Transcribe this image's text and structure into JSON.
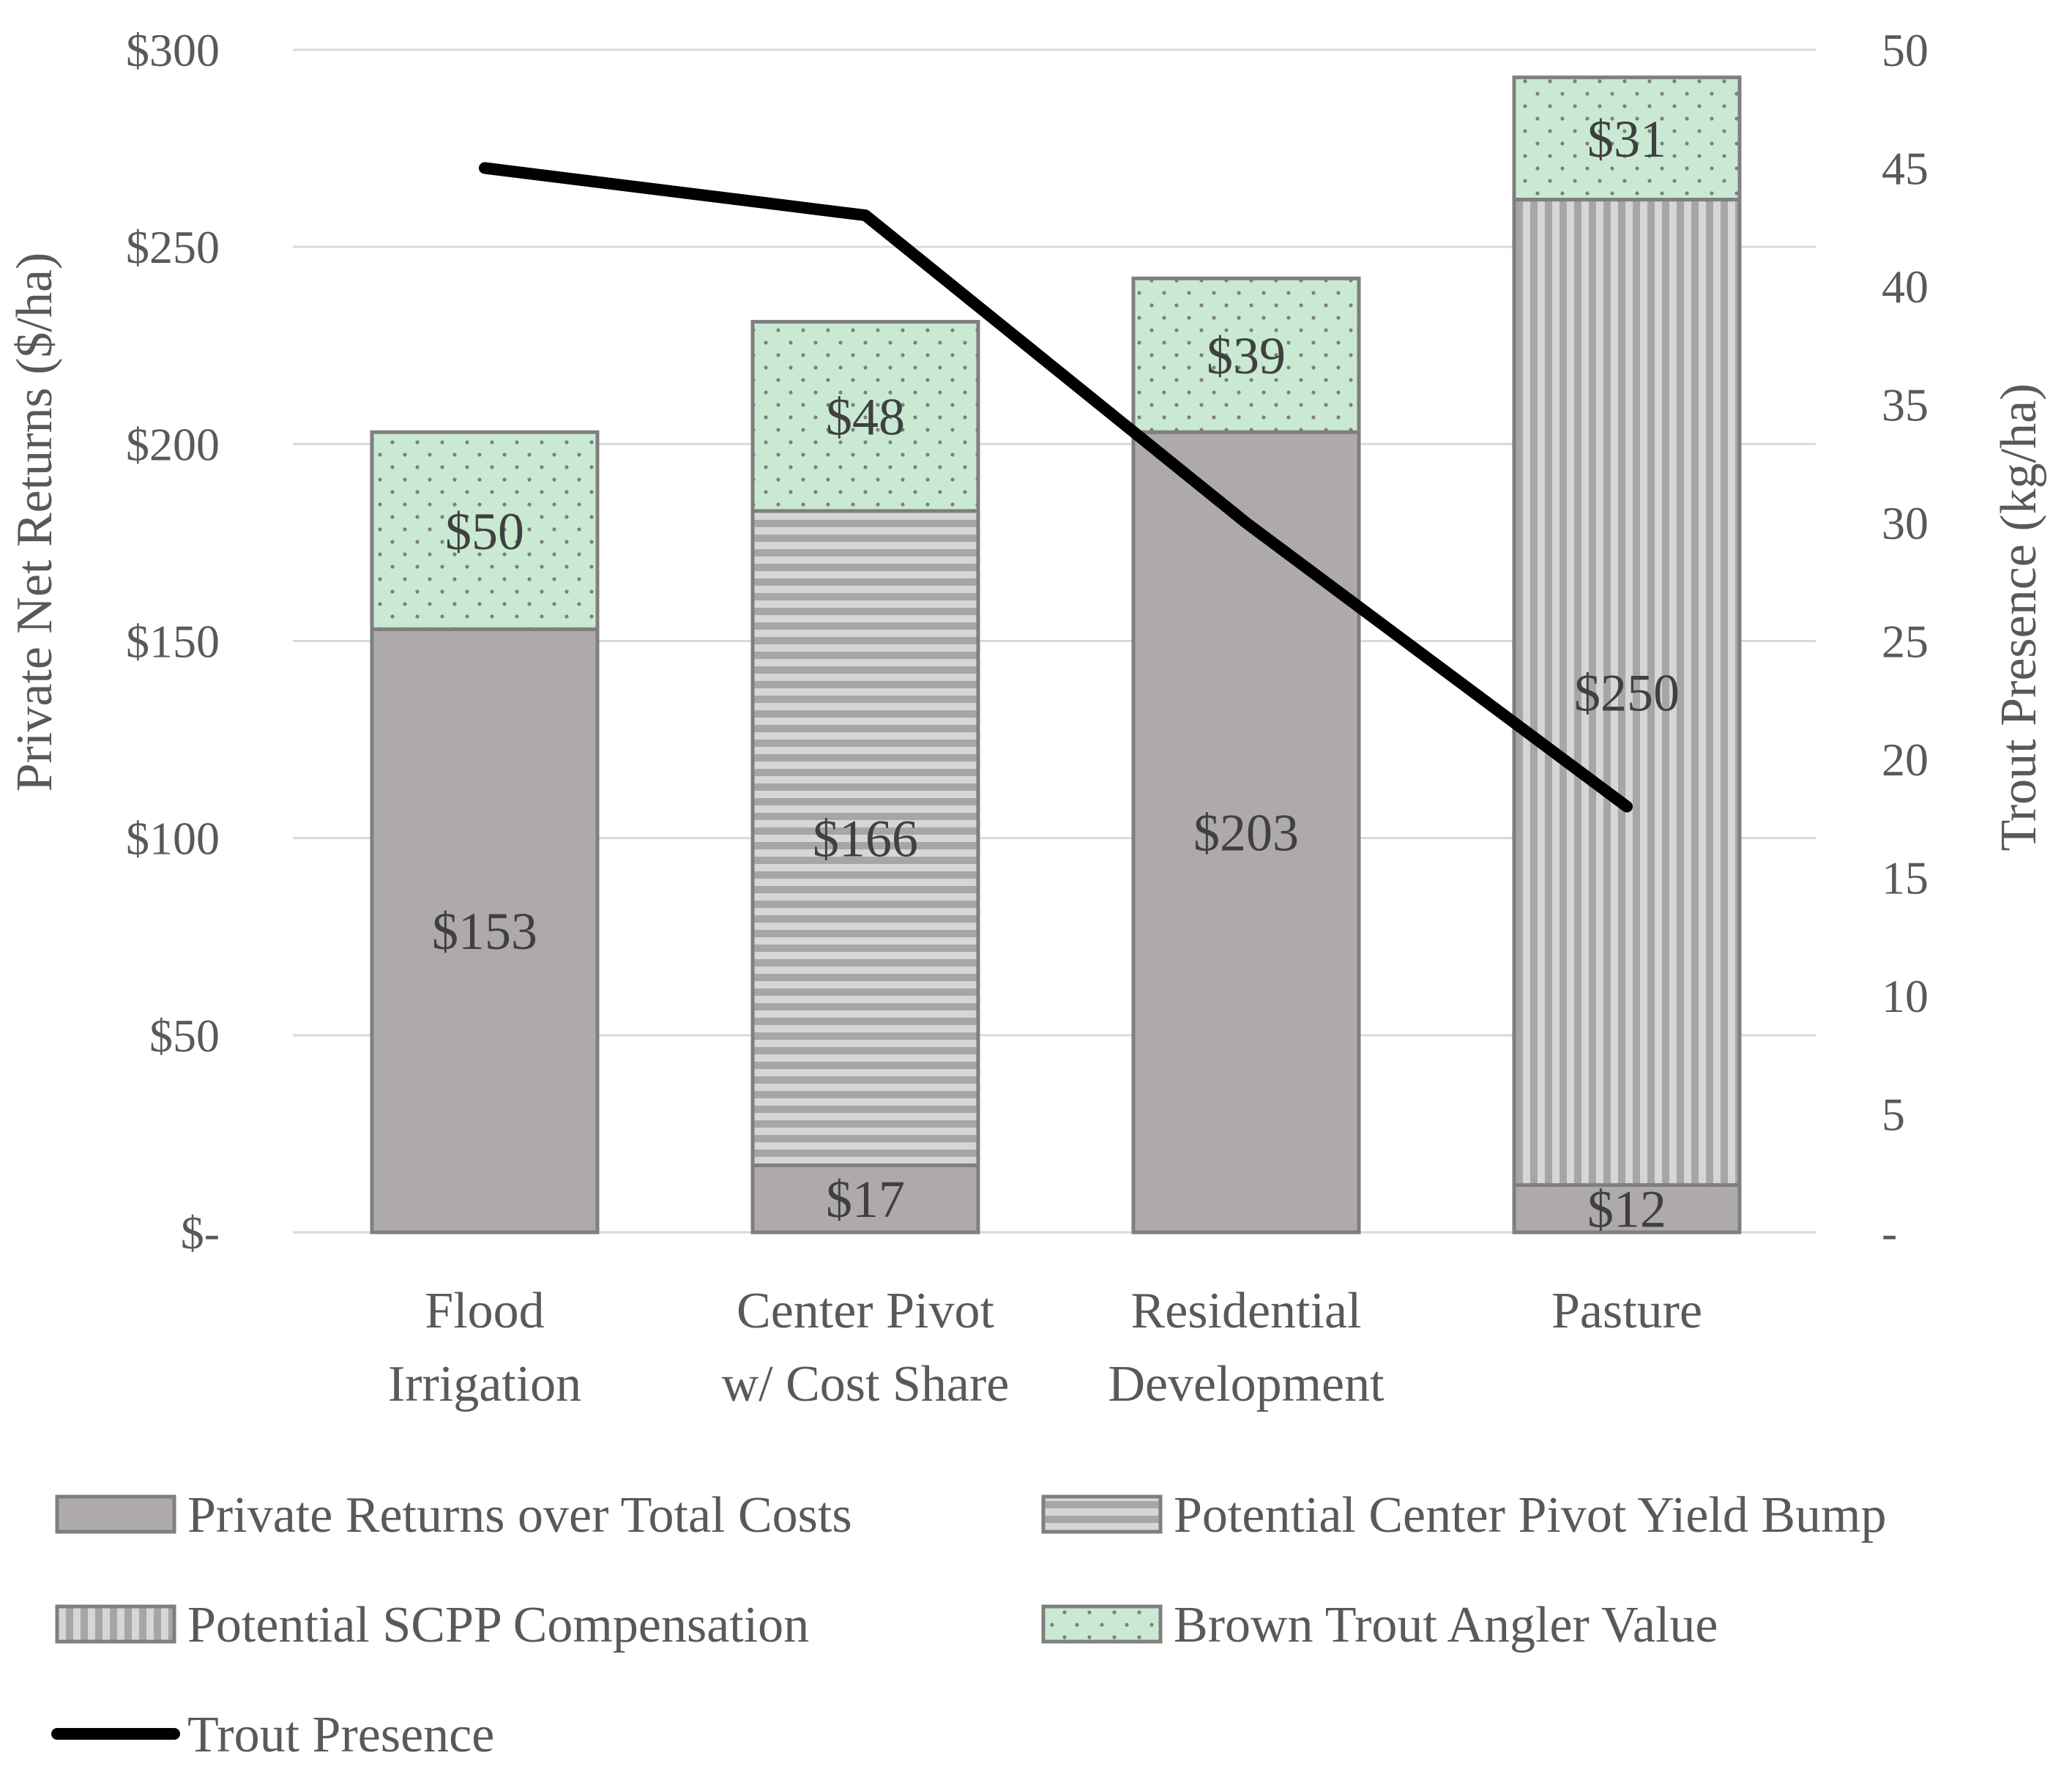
{
  "chart_data": {
    "type": "bar",
    "stacked": true,
    "title": "",
    "categories": [
      [
        "Flood",
        "Irrigation"
      ],
      [
        "Center Pivot",
        "w/ Cost Share"
      ],
      [
        "Residential",
        "Development"
      ],
      [
        "Pasture"
      ]
    ],
    "ylabel": "Private Net Returns ($/ha)",
    "y2label": "Trout Presence (kg/ha)",
    "ylim": [
      0,
      300
    ],
    "y2lim": [
      0,
      50
    ],
    "yticks": [
      0,
      50,
      100,
      150,
      200,
      250,
      300
    ],
    "ytick_labels": [
      "$-",
      "$50",
      "$100",
      "$150",
      "$200",
      "$250",
      "$300"
    ],
    "y2ticks": [
      0,
      5,
      10,
      15,
      20,
      25,
      30,
      35,
      40,
      45,
      50
    ],
    "y2tick_labels": [
      "-",
      "5",
      "10",
      "15",
      "20",
      "25",
      "30",
      "35",
      "40",
      "45",
      "50"
    ],
    "series": [
      {
        "name": "Private Returns over Total Costs",
        "values": [
          153,
          17,
          203,
          12
        ],
        "labels": [
          "$153",
          "$17",
          "$203",
          "$12"
        ],
        "color": "#aeaaaa",
        "pattern": "solid"
      },
      {
        "name": "Potential Center Pivot Yield Bump",
        "values": [
          0,
          166,
          0,
          0
        ],
        "labels": [
          "",
          "$166",
          "",
          ""
        ],
        "color": "#bfbfbf",
        "pattern": "horizontal-stripes"
      },
      {
        "name": "Potential SCPP Compensation",
        "values": [
          0,
          0,
          0,
          250
        ],
        "labels": [
          "",
          "",
          "",
          "$250"
        ],
        "color": "#bfbfbf",
        "pattern": "vertical-stripes"
      },
      {
        "name": "Brown Trout Angler Value",
        "values": [
          50,
          48,
          39,
          31
        ],
        "labels": [
          "$50",
          "$48",
          "$39",
          "$31"
        ],
        "color": "#c9e9d3",
        "pattern": "dots"
      }
    ],
    "line_series": {
      "name": "Trout Presence",
      "axis": "secondary",
      "values": [
        45,
        43,
        30,
        18
      ],
      "color": "#000000"
    },
    "legend": {
      "position": "bottom",
      "order": [
        "Private Returns over Total Costs",
        "Potential Center Pivot Yield Bump",
        "Potential SCPP Compensation",
        "Brown Trout Angler Value",
        "Trout Presence"
      ]
    },
    "grid": true
  }
}
